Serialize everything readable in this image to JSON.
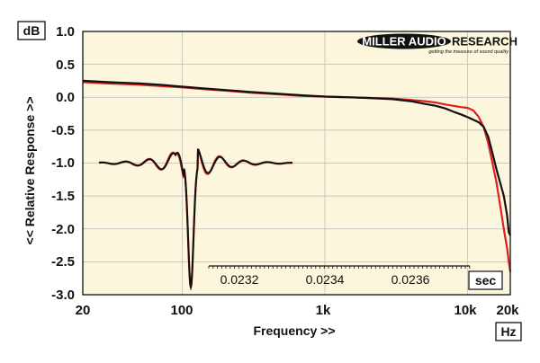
{
  "chart_data": {
    "type": "line",
    "title": "",
    "xlabel": "Frequency >>",
    "ylabel": "<< Relative Response >>",
    "y_unit": "dB",
    "x_unit": "Hz",
    "x_scale": "log",
    "xlim": [
      20,
      20000
    ],
    "ylim": [
      -3.0,
      1.0
    ],
    "x_ticks": [
      {
        "value": 20,
        "label": "20"
      },
      {
        "value": 100,
        "label": "100"
      },
      {
        "value": 1000,
        "label": "1k"
      },
      {
        "value": 10000,
        "label": "10k"
      },
      {
        "value": 20000,
        "label": "20k"
      }
    ],
    "y_ticks": [
      {
        "value": 1.0,
        "label": "1.0"
      },
      {
        "value": 0.5,
        "label": "0.5"
      },
      {
        "value": 0.0,
        "label": "0.0"
      },
      {
        "value": -0.5,
        "label": "-0.5"
      },
      {
        "value": -1.0,
        "label": "-1.0"
      },
      {
        "value": -1.5,
        "label": "-1.5"
      },
      {
        "value": -2.0,
        "label": "-2.0"
      },
      {
        "value": -2.5,
        "label": "-2.5"
      },
      {
        "value": -3.0,
        "label": "-3.0"
      }
    ],
    "grid": true,
    "series": [
      {
        "color": "#e0201b",
        "x": [
          20,
          30,
          50,
          70,
          100,
          150,
          200,
          300,
          500,
          700,
          1000,
          1500,
          2000,
          3000,
          4000,
          5000,
          6000,
          7000,
          8000,
          9000,
          10000,
          11000,
          12000,
          13000,
          14000,
          15000,
          16000,
          17000,
          18000,
          19000,
          19500,
          20000
        ],
        "y": [
          0.23,
          0.21,
          0.19,
          0.17,
          0.15,
          0.12,
          0.1,
          0.07,
          0.04,
          0.02,
          0.01,
          0.0,
          -0.01,
          -0.02,
          -0.04,
          -0.06,
          -0.08,
          -0.11,
          -0.13,
          -0.15,
          -0.16,
          -0.2,
          -0.3,
          -0.45,
          -0.7,
          -1.0,
          -1.3,
          -1.65,
          -2.0,
          -2.3,
          -2.5,
          -2.65
        ]
      },
      {
        "color": "#111111",
        "x": [
          20,
          30,
          50,
          70,
          100,
          150,
          200,
          300,
          500,
          700,
          1000,
          1500,
          2000,
          3000,
          4000,
          5000,
          6000,
          7000,
          8000,
          9000,
          10000,
          11000,
          12000,
          13000,
          14000,
          15000,
          16000,
          17000,
          18000,
          19000,
          19500,
          20000
        ],
        "y": [
          0.25,
          0.23,
          0.21,
          0.19,
          0.16,
          0.13,
          0.11,
          0.08,
          0.05,
          0.03,
          0.01,
          0.0,
          -0.01,
          -0.03,
          -0.06,
          -0.1,
          -0.13,
          -0.17,
          -0.22,
          -0.26,
          -0.3,
          -0.34,
          -0.38,
          -0.45,
          -0.6,
          -0.85,
          -1.1,
          -1.3,
          -1.5,
          -1.8,
          -2.05,
          -2.1
        ]
      }
    ],
    "inset": {
      "type": "line",
      "x_unit": "sec",
      "x_ticks": [
        {
          "value": 0.0232,
          "label": "0.0232"
        },
        {
          "value": 0.0234,
          "label": "0.0234"
        },
        {
          "value": 0.0236,
          "label": "0.0236"
        }
      ],
      "series_colors": [
        "#e0201b",
        "#111111"
      ]
    },
    "colors": {
      "plot_background": "#fbf6dc",
      "grid": "#b8b8b8",
      "frame": "#111111"
    },
    "logo": {
      "text_main_left": "MILLER AUDIO",
      "text_main_right": "RESEARCH",
      "tagline": "getting the measure of sound quality"
    }
  }
}
